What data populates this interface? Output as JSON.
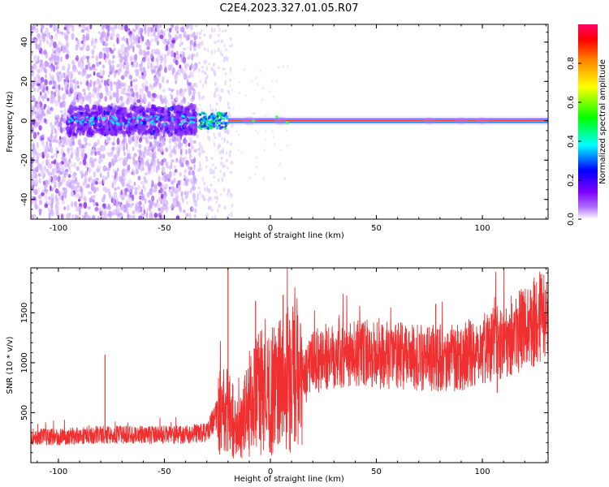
{
  "figure": {
    "title": "C2E4.2023.327.01.05.R07"
  },
  "chart_data": [
    {
      "type": "heatmap",
      "xlabel": "Height of straight line (km)",
      "ylabel": "Frequency (Hz)",
      "xlim": [
        -113,
        131
      ],
      "ylim": [
        -50,
        49
      ],
      "x_ticks": [
        -100,
        -50,
        0,
        50,
        100
      ],
      "y_ticks": [
        -40,
        -20,
        0,
        20,
        40
      ],
      "colorbar": {
        "label": "Normalized spectral amplitude",
        "range": [
          0,
          1
        ],
        "ticks": [
          0.0,
          0.2,
          0.4,
          0.6,
          0.8
        ],
        "colormap": [
          "#ffffff",
          "#7f00ff",
          "#0000ff",
          "#00ffff",
          "#00ff00",
          "#ffff00",
          "#ff0000",
          "#ff0066"
        ]
      },
      "regions": [
        {
          "x": [
            -113,
            -35
          ],
          "description_level": 0.35,
          "freq_spread": 50
        },
        {
          "x": [
            -35,
            -20
          ],
          "description_level": 0.55,
          "freq_spread": 5
        },
        {
          "x": [
            -20,
            131
          ],
          "description_level": 0.9,
          "freq_spread": 1
        }
      ],
      "ridge": {
        "x": [
          -113,
          131
        ],
        "frequency": 0
      }
    },
    {
      "type": "line",
      "xlabel": "Height of straight line (km)",
      "ylabel": "SNR (10 * v/v)",
      "xlim": [
        -113,
        131
      ],
      "ylim": [
        0,
        1950
      ],
      "x_ticks": [
        -100,
        -50,
        0,
        50,
        100
      ],
      "y_ticks": [
        500,
        1000,
        1500
      ],
      "series": [
        {
          "color": "#f03030",
          "trend": {
            "x": [
              -113,
              -100,
              -80,
              -60,
              -40,
              -30,
              -25,
              -20,
              -15,
              -10,
              -5,
              0,
              5,
              10,
              15,
              20,
              30,
              50,
              70,
              90,
              100,
              110,
              120,
              131
            ],
            "y": [
              260,
              260,
              280,
              280,
              280,
              300,
              500,
              520,
              300,
              600,
              700,
              700,
              800,
              850,
              800,
              1000,
              1100,
              1080,
              1050,
              1050,
              1150,
              1250,
              1350,
              1500
            ]
          },
          "spikes": [
            {
              "x": -78,
              "y": 1080
            },
            {
              "x": -20,
              "y": 1950
            },
            {
              "x": -7,
              "y": 1620
            },
            {
              "x": 6,
              "y": 1680
            },
            {
              "x": 78,
              "y": 1590
            },
            {
              "x": 107,
              "y": 700
            },
            {
              "x": 128,
              "y": 1700
            }
          ]
        }
      ]
    }
  ]
}
